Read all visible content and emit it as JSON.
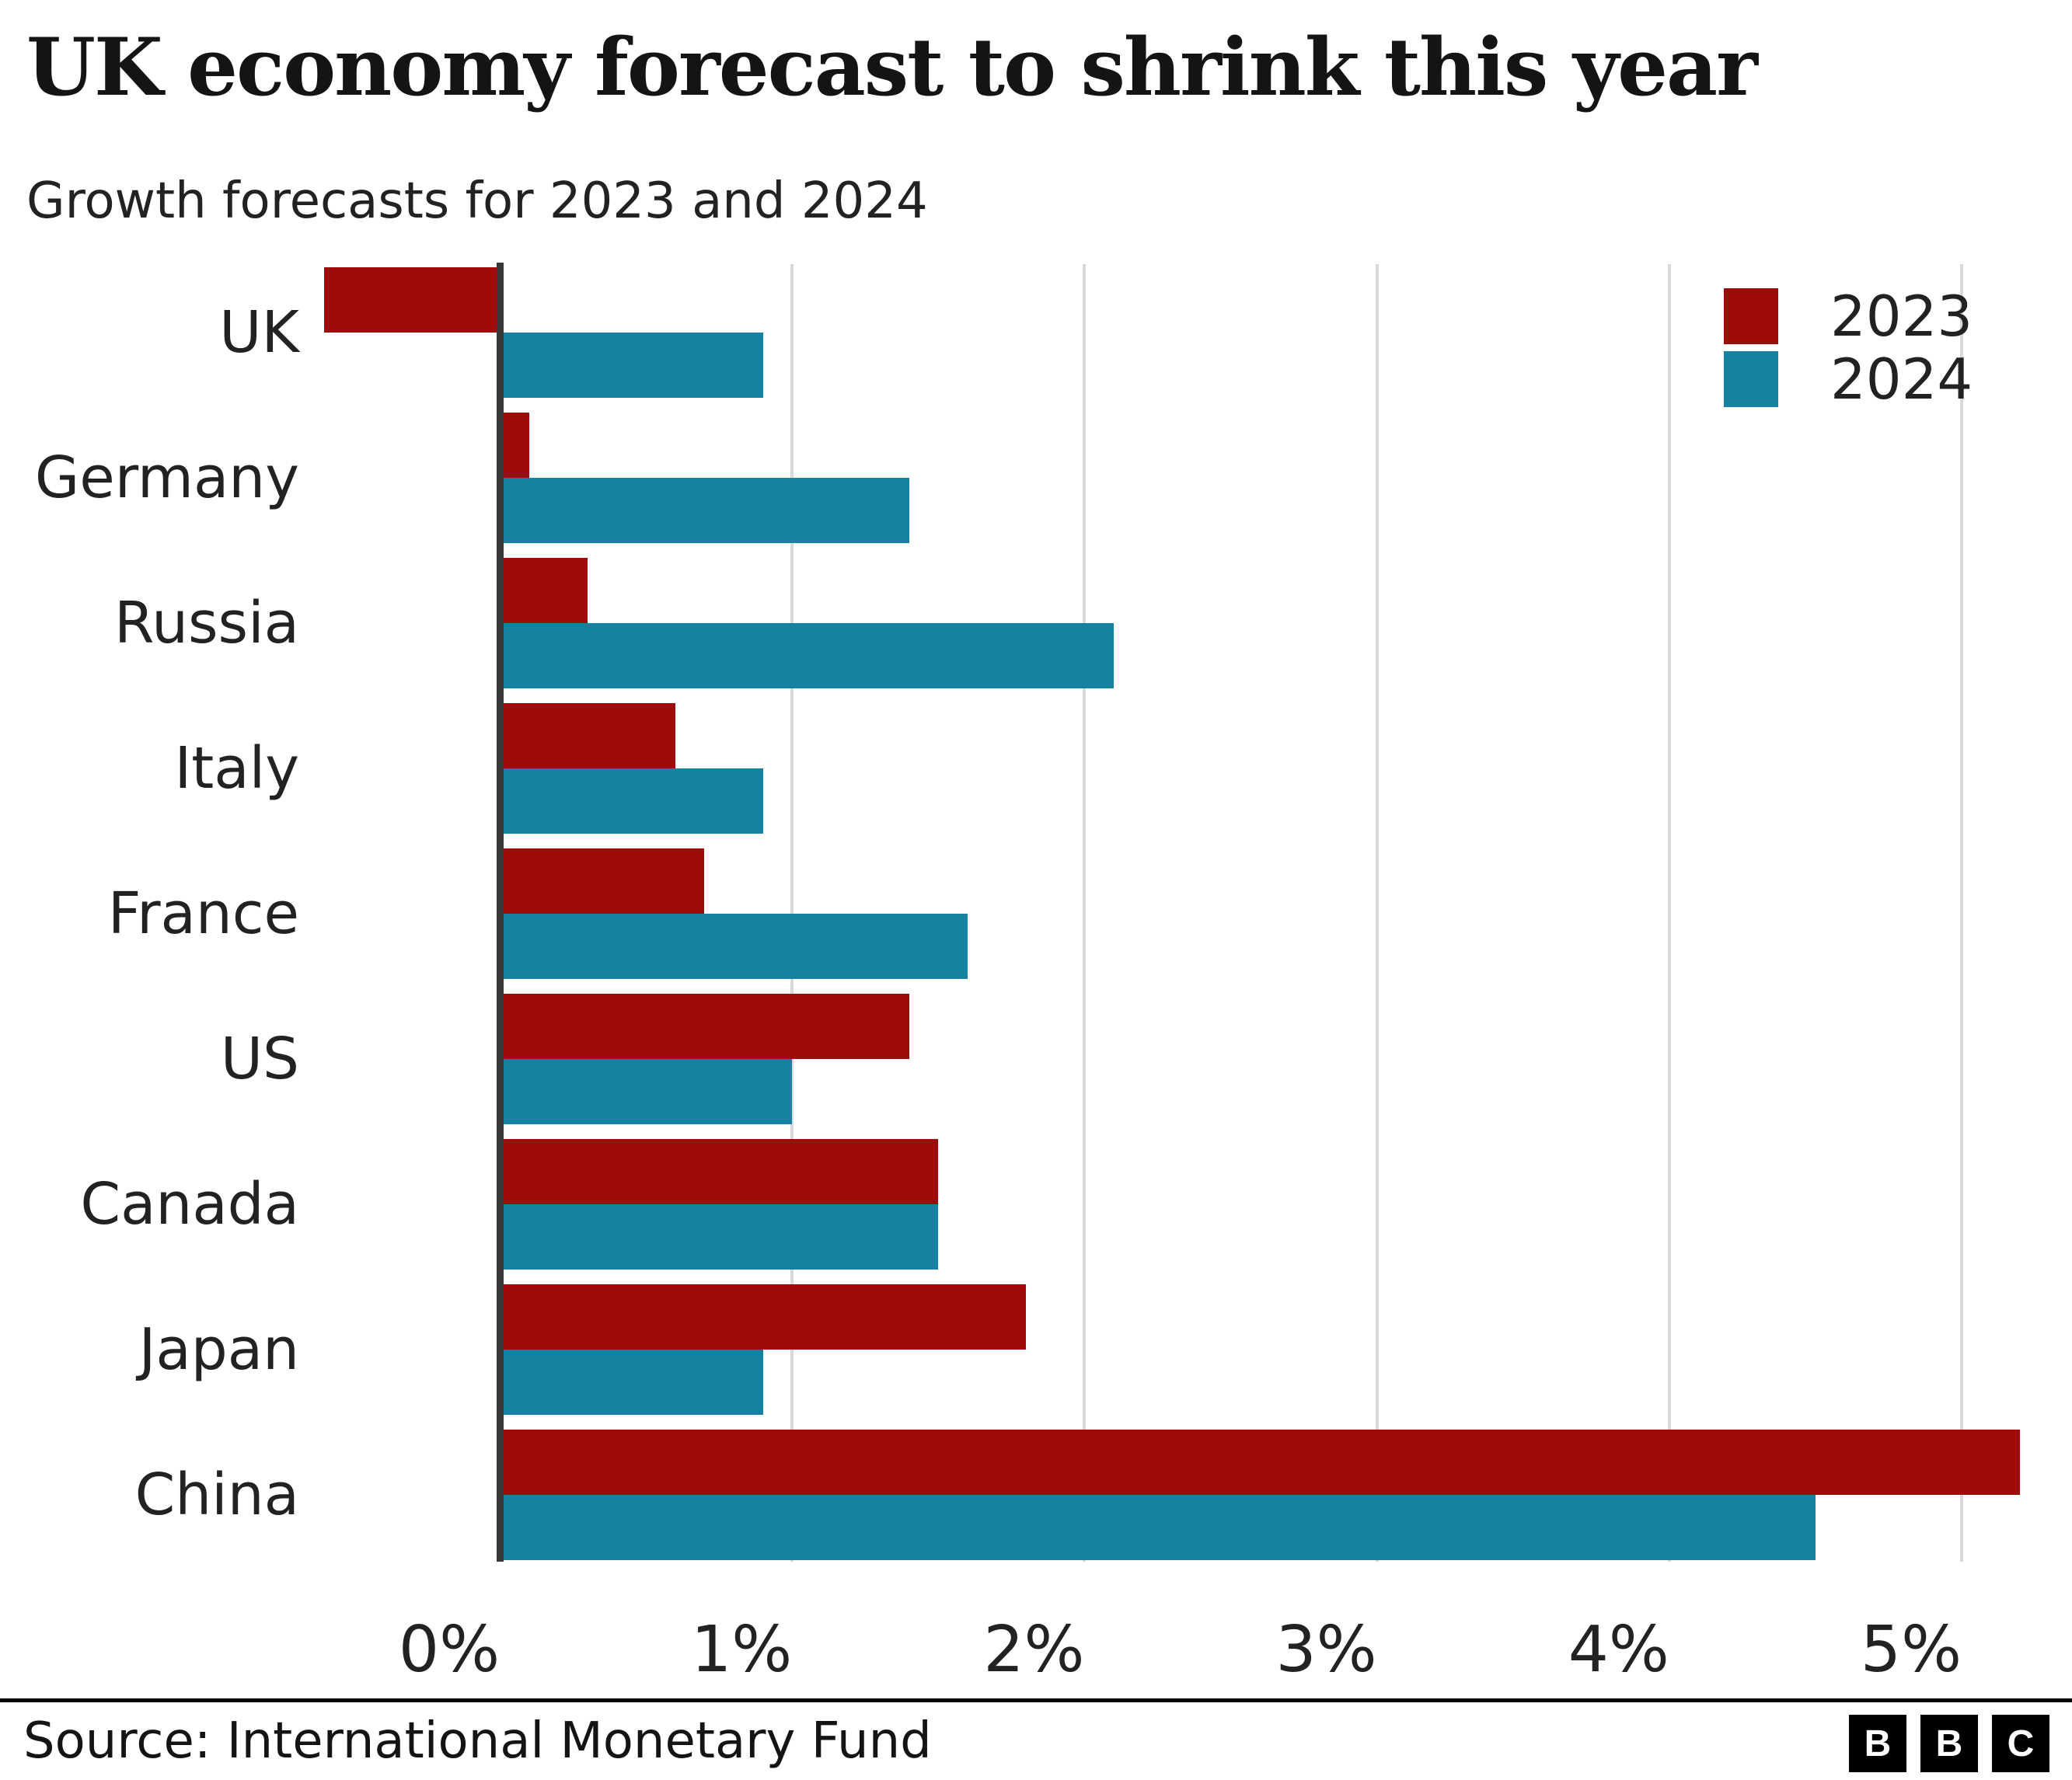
{
  "header": {
    "title": "UK economy forecast to shrink this year",
    "subtitle": "Growth forecasts for 2023 and 2024"
  },
  "footer": {
    "source": "Source: International Monetary Fund",
    "logo_letters": [
      "B",
      "B",
      "C"
    ]
  },
  "legend": [
    {
      "label": "2023",
      "color": "#9e0b0b"
    },
    {
      "label": "2024",
      "color": "#1781a1"
    }
  ],
  "chart_data": {
    "type": "bar",
    "orientation": "horizontal",
    "title": "UK economy forecast to shrink this year",
    "subtitle": "Growth forecasts for 2023 and 2024",
    "categories": [
      "UK",
      "Germany",
      "Russia",
      "Italy",
      "France",
      "US",
      "Canada",
      "Japan",
      "China"
    ],
    "series": [
      {
        "name": "2023",
        "color": "#9e0b0b",
        "values": [
          -0.6,
          0.1,
          0.3,
          0.6,
          0.7,
          1.4,
          1.5,
          1.8,
          5.2
        ]
      },
      {
        "name": "2024",
        "color": "#1781a1",
        "values": [
          0.9,
          1.4,
          2.1,
          0.9,
          1.6,
          1.0,
          1.5,
          0.9,
          4.5
        ]
      }
    ],
    "x_ticks": [
      {
        "label": "0%",
        "value": 0
      },
      {
        "label": "1%",
        "value": 1
      },
      {
        "label": "2%",
        "value": 2
      },
      {
        "label": "3%",
        "value": 3
      },
      {
        "label": "4%",
        "value": 4
      },
      {
        "label": "5%",
        "value": 5
      }
    ],
    "xlim": [
      -0.75,
      5.4
    ],
    "grid": true,
    "zero_line": true,
    "legend_position": "top-right",
    "unit": "percent"
  }
}
